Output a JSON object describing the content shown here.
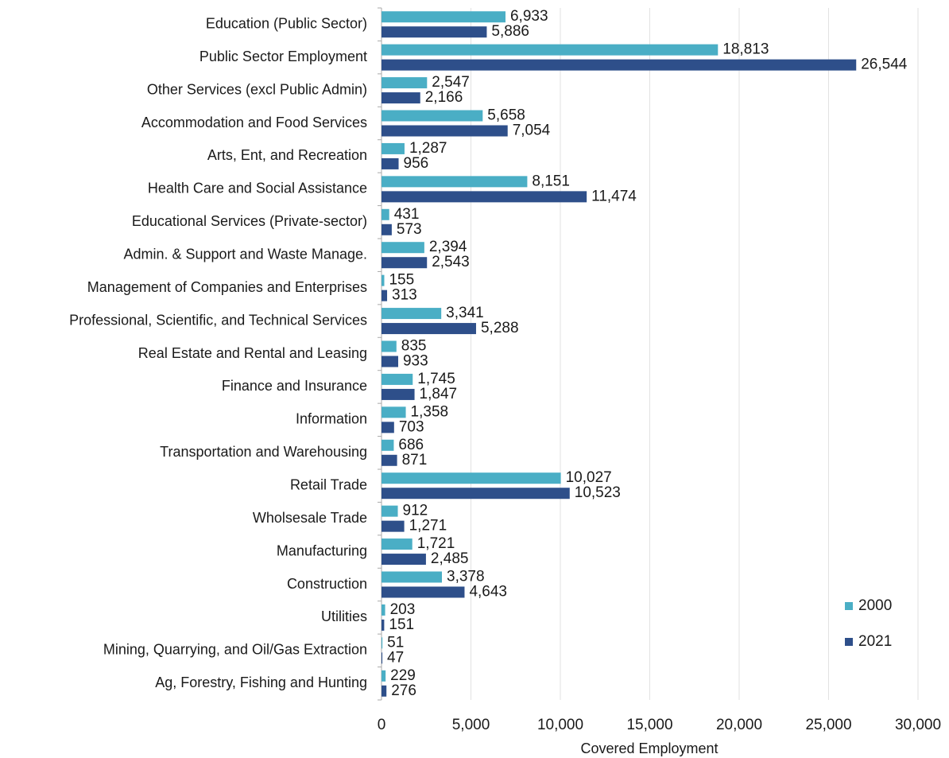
{
  "chart_data": {
    "type": "bar",
    "orientation": "horizontal",
    "x_label": "Covered Employment",
    "categories": [
      "Education (Public Sector)",
      "Public Sector Employment",
      "Other Services (excl Public Admin)",
      "Accommodation and Food Services",
      "Arts, Ent, and Recreation",
      "Health Care and Social Assistance",
      "Educational Services (Private-sector)",
      "Admin. & Support and Waste Manage.",
      "Management of Companies and Enterprises",
      "Professional, Scientific, and Technical Services",
      "Real Estate and Rental and Leasing",
      "Finance and Insurance",
      "Information",
      "Transportation and Warehousing",
      "Retail Trade",
      "Wholsesale Trade",
      "Manufacturing",
      "Construction",
      "Utilities",
      "Mining, Quarrying, and Oil/Gas Extraction",
      "Ag, Forestry, Fishing and Hunting"
    ],
    "series": [
      {
        "name": "2000",
        "color": "#4aaec5",
        "values": [
          6933,
          18813,
          2547,
          5658,
          1287,
          8151,
          431,
          2394,
          155,
          3341,
          835,
          1745,
          1358,
          686,
          10027,
          912,
          1721,
          3378,
          203,
          51,
          229
        ],
        "value_labels": [
          "6,933",
          "18,813",
          "2,547",
          "5,658",
          "1,287",
          "8,151",
          "431",
          "2,394",
          "155",
          "3,341",
          "835",
          "1,745",
          "1,358",
          "686",
          "10,027",
          "912",
          "1,721",
          "3,378",
          "203",
          "51",
          "229"
        ]
      },
      {
        "name": "2021",
        "color": "#2e4f8a",
        "values": [
          5886,
          26544,
          2166,
          7054,
          956,
          11474,
          573,
          2543,
          313,
          5288,
          933,
          1847,
          703,
          871,
          10523,
          1271,
          2485,
          4643,
          151,
          47,
          276
        ],
        "value_labels": [
          "5,886",
          "26,544",
          "2,166",
          "7,054",
          "956",
          "11,474",
          "573",
          "2,543",
          "313",
          "5,288",
          "933",
          "1,847",
          "703",
          "871",
          "10,523",
          "1,271",
          "2,485",
          "4,643",
          "151",
          "47",
          "276"
        ]
      }
    ],
    "xlim": [
      0,
      30000
    ],
    "xticks": [
      0,
      {
        "value": 5000,
        "label": "5,000"
      },
      {
        "value": 10000,
        "label": "10,000"
      },
      {
        "value": 15000,
        "label": "15,000"
      },
      {
        "value": 20000,
        "label": "20,000"
      },
      {
        "value": 25000,
        "label": "25,000"
      },
      {
        "value": 30000,
        "label": "30,000"
      }
    ],
    "grid": true,
    "legend": "lower right"
  }
}
